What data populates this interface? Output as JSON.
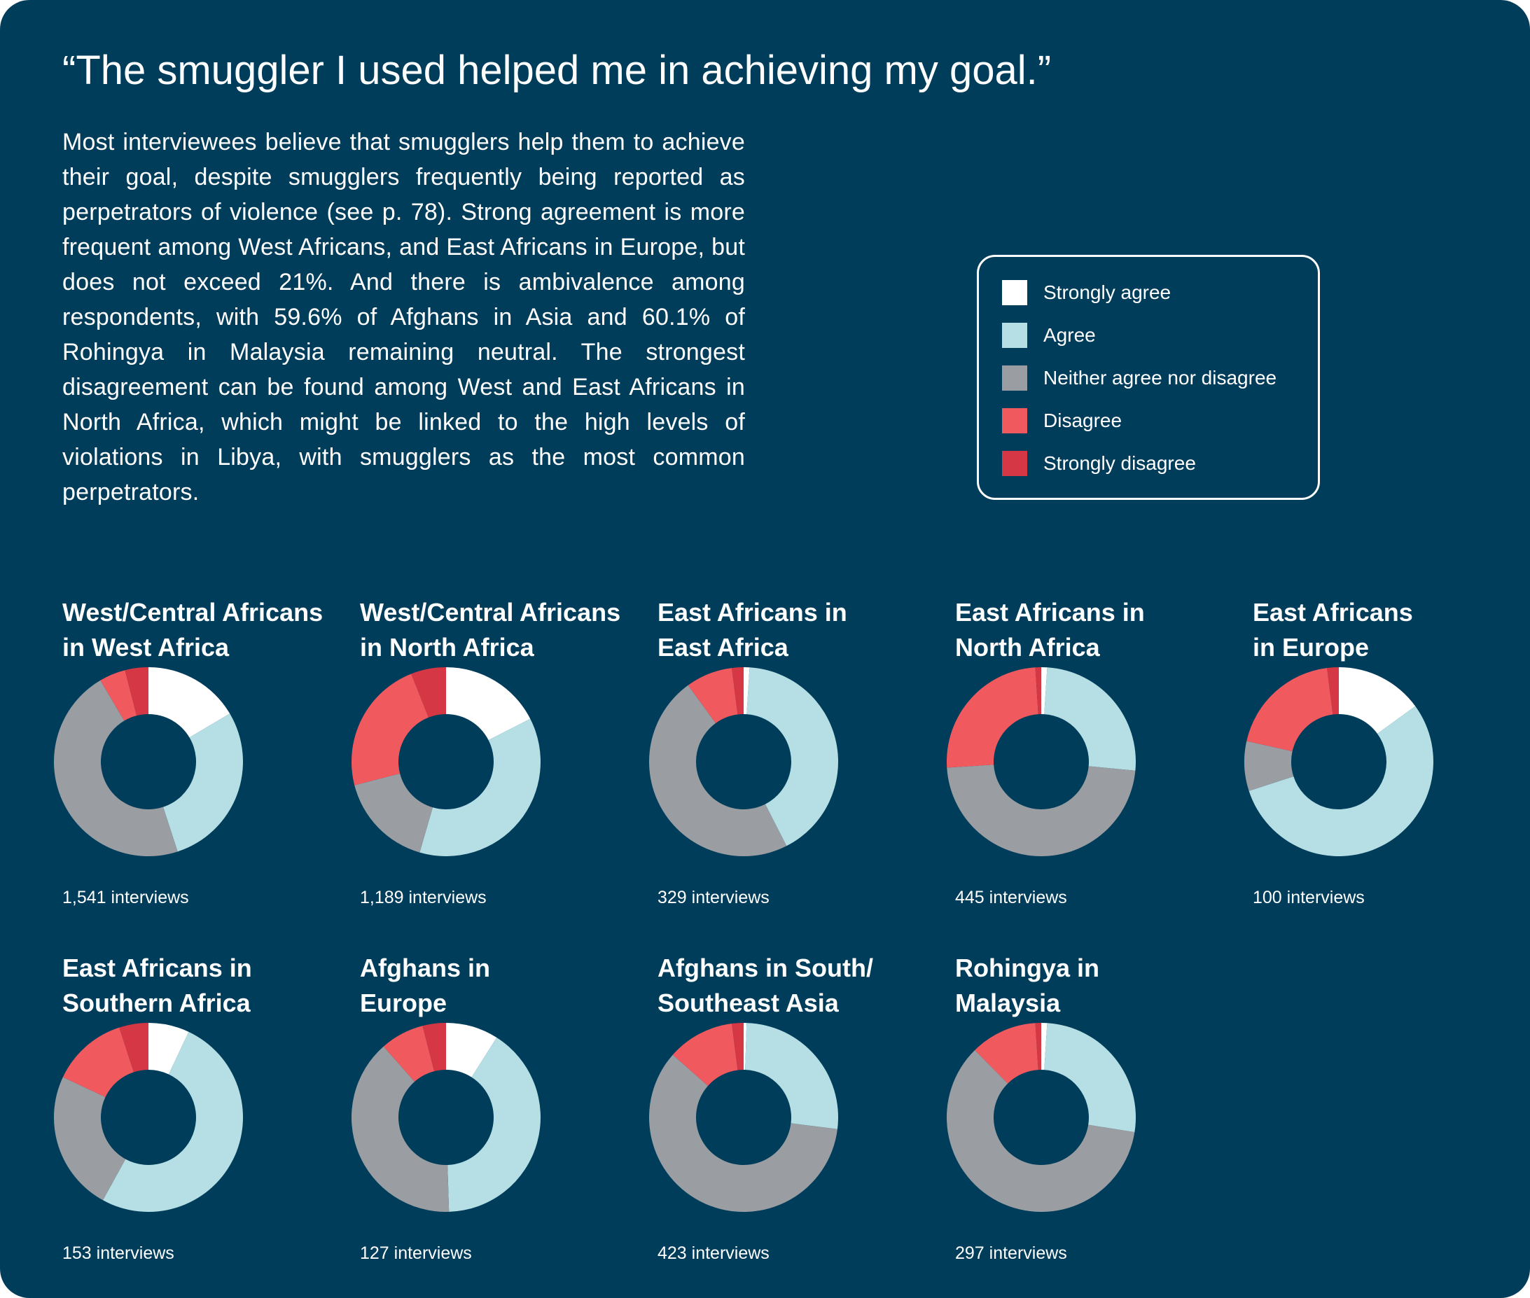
{
  "title": "“The smuggler I used helped me in achieving my goal.”",
  "body_text": "Most interviewees believe that smugglers help them to achieve their goal, despite smugglers frequently being reported as perpetrators of violence (see p. 78). Strong agreement is more frequent among West Africans, and East Africans in Europe, but does not exceed 21%. And there is ambivalence among respondents, with 59.6% of Afghans in Asia and 60.1% of Rohingya in Malaysia remaining neutral.  The strongest disagreement can be found among West and East Africans in North Africa, which might be linked to the high levels of violations in Libya, with smugglers as the most common perpetrators.",
  "legend": [
    {
      "label": "Strongly agree",
      "color": "#ffffff"
    },
    {
      "label": "Agree",
      "color": "#b5dfe4"
    },
    {
      "label": "Neither agree nor disagree",
      "color": "#9a9ea3"
    },
    {
      "label": "Disagree",
      "color": "#f05a5f"
    },
    {
      "label": "Strongly disagree",
      "color": "#d63744"
    }
  ],
  "chart_data": [
    {
      "type": "pie",
      "title_lines": [
        "West/Central Africans",
        "in West Africa"
      ],
      "footer": "1,541 interviews",
      "categories": [
        "Strongly agree",
        "Agree",
        "Neither agree nor disagree",
        "Disagree",
        "Strongly disagree"
      ],
      "values": [
        16.5,
        28.5,
        46.5,
        4.5,
        4.0
      ]
    },
    {
      "type": "pie",
      "title_lines": [
        "West/Central Africans",
        "in North Africa"
      ],
      "footer": "1,189 interviews",
      "categories": [
        "Strongly agree",
        "Agree",
        "Neither agree nor disagree",
        "Disagree",
        "Strongly disagree"
      ],
      "values": [
        17.5,
        37.0,
        16.5,
        23.0,
        6.0
      ]
    },
    {
      "type": "pie",
      "title_lines": [
        "East Africans in",
        "East Africa"
      ],
      "footer": "329 interviews",
      "categories": [
        "Strongly agree",
        "Agree",
        "Neither agree nor disagree",
        "Disagree",
        "Strongly disagree"
      ],
      "values": [
        1.0,
        41.5,
        47.5,
        8.0,
        2.0
      ]
    },
    {
      "type": "pie",
      "title_lines": [
        "East Africans in",
        "North Africa"
      ],
      "footer": "445 interviews",
      "categories": [
        "Strongly agree",
        "Agree",
        "Neither agree nor disagree",
        "Disagree",
        "Strongly disagree"
      ],
      "values": [
        1.0,
        25.5,
        47.5,
        25.0,
        1.0
      ]
    },
    {
      "type": "pie",
      "title_lines": [
        "East Africans",
        "in Europe"
      ],
      "footer": "100 interviews",
      "categories": [
        "Strongly agree",
        "Agree",
        "Neither agree nor disagree",
        "Disagree",
        "Strongly disagree"
      ],
      "values": [
        15.0,
        55.0,
        8.5,
        19.5,
        2.0
      ]
    },
    {
      "type": "pie",
      "title_lines": [
        "East Africans in",
        "Southern Africa"
      ],
      "footer": "153 interviews",
      "categories": [
        "Strongly agree",
        "Agree",
        "Neither agree nor disagree",
        "Disagree",
        "Strongly disagree"
      ],
      "values": [
        7.0,
        51.0,
        24.0,
        13.0,
        5.0
      ]
    },
    {
      "type": "pie",
      "title_lines": [
        "Afghans in",
        "Europe"
      ],
      "footer": "127 interviews",
      "categories": [
        "Strongly agree",
        "Agree",
        "Neither agree nor disagree",
        "Disagree",
        "Strongly disagree"
      ],
      "values": [
        9.0,
        40.5,
        39.0,
        7.5,
        4.0
      ]
    },
    {
      "type": "pie",
      "title_lines": [
        "Afghans in South/",
        "Southeast Asia"
      ],
      "footer": "423 interviews",
      "categories": [
        "Strongly agree",
        "Agree",
        "Neither agree nor disagree",
        "Disagree",
        "Strongly disagree"
      ],
      "values": [
        0.5,
        26.5,
        59.6,
        11.5,
        2.0
      ]
    },
    {
      "type": "pie",
      "title_lines": [
        "Rohingya in",
        "Malaysia"
      ],
      "footer": "297 interviews",
      "categories": [
        "Strongly agree",
        "Agree",
        "Neither agree nor disagree",
        "Disagree",
        "Strongly disagree"
      ],
      "values": [
        1.0,
        26.5,
        60.1,
        11.4,
        1.0
      ]
    }
  ]
}
